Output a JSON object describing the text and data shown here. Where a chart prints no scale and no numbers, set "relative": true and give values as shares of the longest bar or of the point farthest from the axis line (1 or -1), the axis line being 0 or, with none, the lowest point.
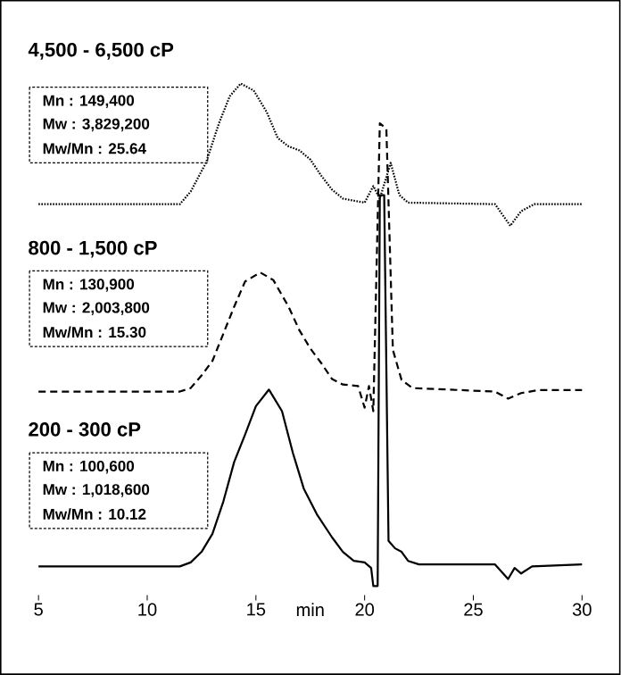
{
  "chart_data": {
    "type": "line",
    "relative": true,
    "xlabel": "min",
    "xlim": [
      5,
      30
    ],
    "xticks": [
      5,
      10,
      15,
      20,
      25,
      30
    ],
    "series": [
      {
        "color": "#000000",
        "line_style": "dotted",
        "x": [
          5,
          11.5,
          12,
          12.7,
          13.3,
          13.8,
          14.3,
          14.9,
          15.5,
          16,
          16.5,
          17,
          17.5,
          18,
          18.5,
          19,
          20,
          20.4,
          20.7,
          21.2,
          21.6,
          22,
          26,
          26.7,
          27.2,
          27.8,
          30
        ],
        "values": [
          0.76,
          0.76,
          0.785,
          0.842,
          0.921,
          0.975,
          1.0,
          0.986,
          0.943,
          0.892,
          0.875,
          0.867,
          0.849,
          0.817,
          0.789,
          0.771,
          0.763,
          0.796,
          0.771,
          0.842,
          0.778,
          0.763,
          0.76,
          0.717,
          0.746,
          0.76,
          0.76
        ]
      },
      {
        "color": "#000000",
        "line_style": "dashed",
        "x": [
          5,
          11.5,
          12,
          12.5,
          13,
          13.5,
          14,
          14.5,
          15.2,
          15.8,
          16.5,
          17,
          17.5,
          18,
          18.5,
          19,
          19.7,
          20,
          20.2,
          20.4,
          20.7,
          21,
          21.3,
          21.7,
          22.2,
          26,
          26.6,
          27.2,
          28,
          30
        ],
        "values": [
          0.387,
          0.387,
          0.394,
          0.419,
          0.448,
          0.502,
          0.556,
          0.606,
          0.624,
          0.609,
          0.556,
          0.509,
          0.473,
          0.444,
          0.412,
          0.401,
          0.398,
          0.355,
          0.398,
          0.348,
          0.921,
          0.91,
          0.47,
          0.41,
          0.394,
          0.387,
          0.373,
          0.384,
          0.39,
          0.39
        ]
      },
      {
        "color": "#000000",
        "line_style": "solid",
        "x": [
          5,
          11.5,
          12,
          12.5,
          13,
          13.5,
          14,
          14.5,
          15,
          15.6,
          16.2,
          16.7,
          17.2,
          17.8,
          18.5,
          19,
          19.5,
          20,
          20.3,
          20.4,
          20.6,
          20.7,
          20.9,
          21.1,
          21.4,
          21.7,
          22,
          22.5,
          26,
          26.6,
          26.9,
          27.2,
          27.7,
          30
        ],
        "values": [
          0.039,
          0.039,
          0.047,
          0.068,
          0.104,
          0.168,
          0.247,
          0.301,
          0.358,
          0.391,
          0.348,
          0.265,
          0.194,
          0.143,
          0.097,
          0.068,
          0.05,
          0.047,
          0.036,
          0.0,
          0.0,
          0.778,
          0.778,
          0.09,
          0.075,
          0.068,
          0.05,
          0.043,
          0.043,
          0.014,
          0.036,
          0.025,
          0.039,
          0.043
        ]
      }
    ],
    "annotations": [
      "4,500 - 6,500 cP",
      "Mn :    149,400",
      "Mw : 3,829,200",
      "Mw/Mn : 25.64",
      "800 - 1,500 cP",
      "Mn :    130,900",
      "Mw : 2,003,800",
      "Mw/Mn : 15.30",
      "200 - 300 cP",
      "Mn :    100,600",
      "Mw : 1,018,600",
      "Mw/Mn : 10.12"
    ]
  }
}
